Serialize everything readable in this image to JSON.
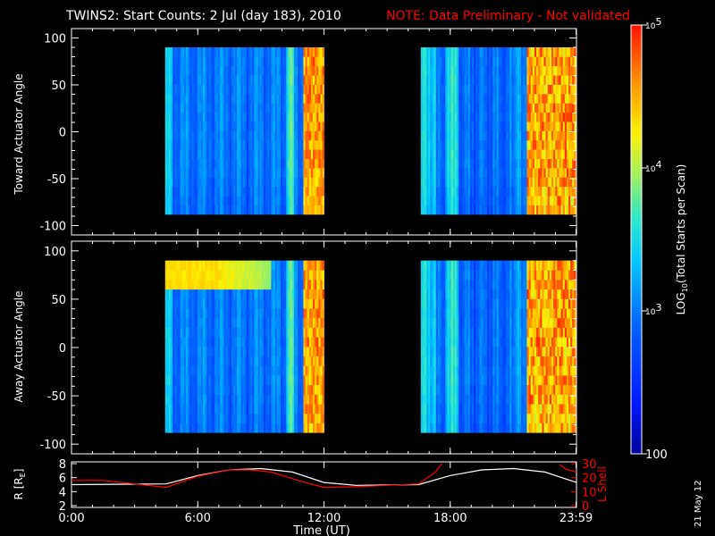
{
  "header": {
    "title": "TWINS2: Start Counts:  2 Jul (day 183), 2010",
    "note": "NOTE: Data Preliminary - Not validated"
  },
  "side_stamp": "21 May 12",
  "colors": {
    "background": "#000000",
    "axis": "#ffffff",
    "note": "#ff0000",
    "l_shell": "#ff0000",
    "r_line": "#ffffff"
  },
  "chart_data": [
    {
      "type": "heatmap",
      "panel": "toward",
      "ylabel": "Toward Actuator Angle",
      "ylim": [
        -110,
        110
      ],
      "yticks": [
        100,
        50,
        0,
        -50,
        -100
      ],
      "ytick_labels": [
        "100",
        "50",
        "0",
        "-50",
        "-100"
      ],
      "xlim": [
        0,
        24
      ],
      "angle_range": [
        -88,
        90
      ],
      "data_intervals_hours": [
        [
          4.45,
          12.0
        ],
        [
          16.6,
          24.0
        ]
      ],
      "scale": "log",
      "notes": "Mostly blue/cyan (10^2.5-10^3.5); orange/red saturation near 11:00-12:00 and after ~21:40 UT"
    },
    {
      "type": "heatmap",
      "panel": "away",
      "ylabel": "Away Actuator Angle",
      "ylim": [
        -110,
        110
      ],
      "yticks": [
        100,
        50,
        0,
        -50,
        -100
      ],
      "ytick_labels": [
        "100",
        "50",
        "0",
        "-50",
        "-100"
      ],
      "xlim": [
        0,
        24
      ],
      "angle_range": [
        -88,
        90
      ],
      "data_intervals_hours": [
        [
          4.45,
          12.0
        ],
        [
          16.6,
          24.0
        ]
      ],
      "scale": "log",
      "notes": "Yellow/orange band near +70 to +90 degrees from ~4:30 to ~9:00 UT; orange/red near 11:00-12:00 and after ~21:40 UT"
    },
    {
      "type": "line",
      "panel": "orbit",
      "xlim": [
        0,
        24
      ],
      "xticks": [
        0,
        6,
        12,
        18,
        23.983
      ],
      "xtick_labels": [
        "0:00",
        "6:00",
        "12:00",
        "18:00",
        "23:59"
      ],
      "xlabel": "Time (UT)",
      "left_axis": {
        "label": "R [R",
        "label_sub": "E",
        "label_end": "]",
        "ylim": [
          2,
          8
        ],
        "yticks": [
          2,
          4,
          6,
          8
        ],
        "ytick_labels": [
          "2",
          "4",
          "6",
          "8"
        ]
      },
      "right_axis": {
        "label": "L Shell",
        "ylim": [
          0,
          30
        ],
        "yticks": [
          0,
          10,
          20,
          30
        ],
        "ytick_labels": [
          "0",
          "10",
          "20",
          "30"
        ]
      },
      "series": [
        {
          "axis": "left",
          "x": [
            0,
            4.5,
            6,
            7.5,
            9,
            10.5,
            12,
            13.5,
            16.5,
            18,
            19.5,
            21,
            22.5,
            24
          ],
          "y": [
            5.0,
            5.1,
            6.3,
            7.1,
            7.3,
            6.8,
            5.3,
            4.9,
            5.0,
            6.3,
            7.1,
            7.3,
            6.8,
            5.3
          ]
        },
        {
          "axis": "right",
          "x": [
            0,
            1.5,
            3,
            4.5,
            6,
            7.5,
            8.5,
            9.5,
            11,
            12,
            13.5,
            15,
            16.5,
            17.3,
            17.6
          ],
          "y": [
            18,
            18,
            15.5,
            13,
            21,
            25.5,
            25.5,
            24,
            17,
            13,
            13.5,
            14.5,
            15.5,
            24,
            30
          ]
        },
        {
          "axis": "right",
          "x": [
            23.2,
            23.5,
            24.0
          ],
          "y": [
            29.5,
            26,
            24
          ]
        }
      ]
    },
    {
      "type": "heatmap",
      "panel": "colorbar",
      "label": "LOG",
      "label_sub": "10",
      "label_rest": "(Total Starts per Scan)",
      "scale": "log",
      "range": [
        100,
        100000
      ],
      "ticks": [
        {
          "base": "10",
          "exp": "5",
          "value": 100000
        },
        {
          "base": "10",
          "exp": "4",
          "value": 10000
        },
        {
          "base": "10",
          "exp": "3",
          "value": 1000
        },
        {
          "base": "100",
          "exp": "",
          "value": 100
        }
      ]
    }
  ]
}
